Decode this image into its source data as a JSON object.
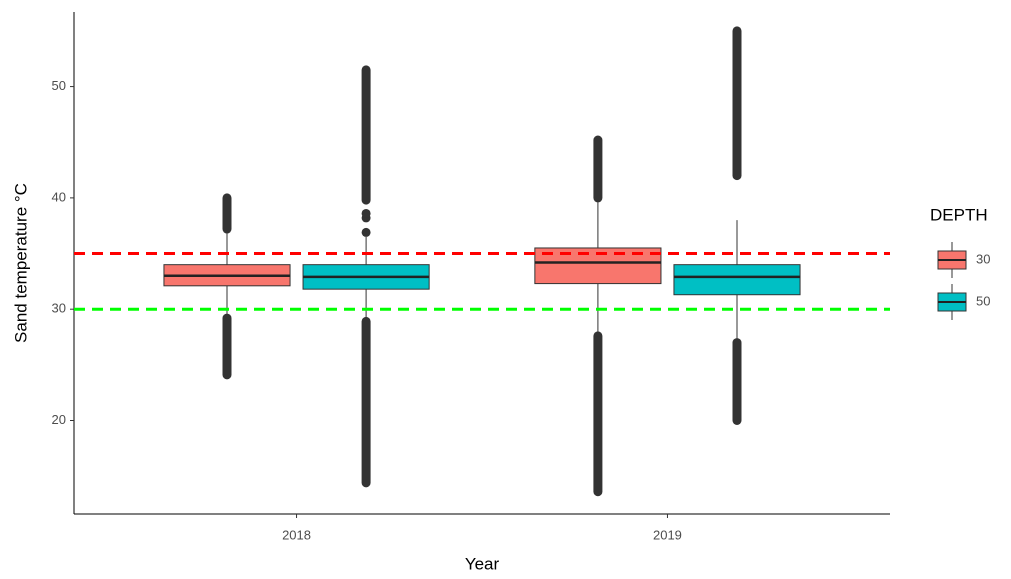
{
  "chart_data": {
    "type": "box",
    "x_label": "Year",
    "y_label": "Sand temperature °C",
    "categories": [
      "2018",
      "2019"
    ],
    "legend_title": "DEPTH",
    "series": [
      {
        "name": "30",
        "color": "#F8766D",
        "boxes": [
          {
            "whisker_low": 29.2,
            "q1": 32.1,
            "median": 33.0,
            "q3": 34.0,
            "whisker_high": 37.0,
            "outliers": [],
            "outlier_ranges": [
              [
                24.1,
                29.2
              ],
              [
                37.2,
                40.0
              ]
            ]
          },
          {
            "whisker_low": 27.6,
            "q1": 32.3,
            "median": 34.2,
            "q3": 35.5,
            "whisker_high": 40.0,
            "outliers": [],
            "outlier_ranges": [
              [
                13.6,
                27.6
              ],
              [
                40.0,
                45.2
              ]
            ]
          }
        ]
      },
      {
        "name": "50",
        "color": "#00BFC4",
        "boxes": [
          {
            "whisker_low": 28.9,
            "q1": 31.8,
            "median": 32.9,
            "q3": 34.0,
            "whisker_high": 36.5,
            "outliers": [
              36.9,
              38.2,
              38.6
            ],
            "outlier_ranges": [
              [
                14.4,
                28.9
              ],
              [
                39.8,
                51.5
              ]
            ]
          },
          {
            "whisker_low": 27.0,
            "q1": 31.3,
            "median": 32.9,
            "q3": 34.0,
            "whisker_high": 38.0,
            "outliers": [],
            "outlier_ranges": [
              [
                20.0,
                27.0
              ],
              [
                42.0,
                55.0
              ]
            ]
          }
        ]
      }
    ],
    "hlines": [
      {
        "value": 35,
        "color": "#FF0000"
      },
      {
        "value": 30,
        "color": "#00FF00"
      }
    ],
    "ylim": [
      11.6,
      56.7
    ],
    "yticks": [
      20,
      30,
      40,
      50
    ]
  }
}
